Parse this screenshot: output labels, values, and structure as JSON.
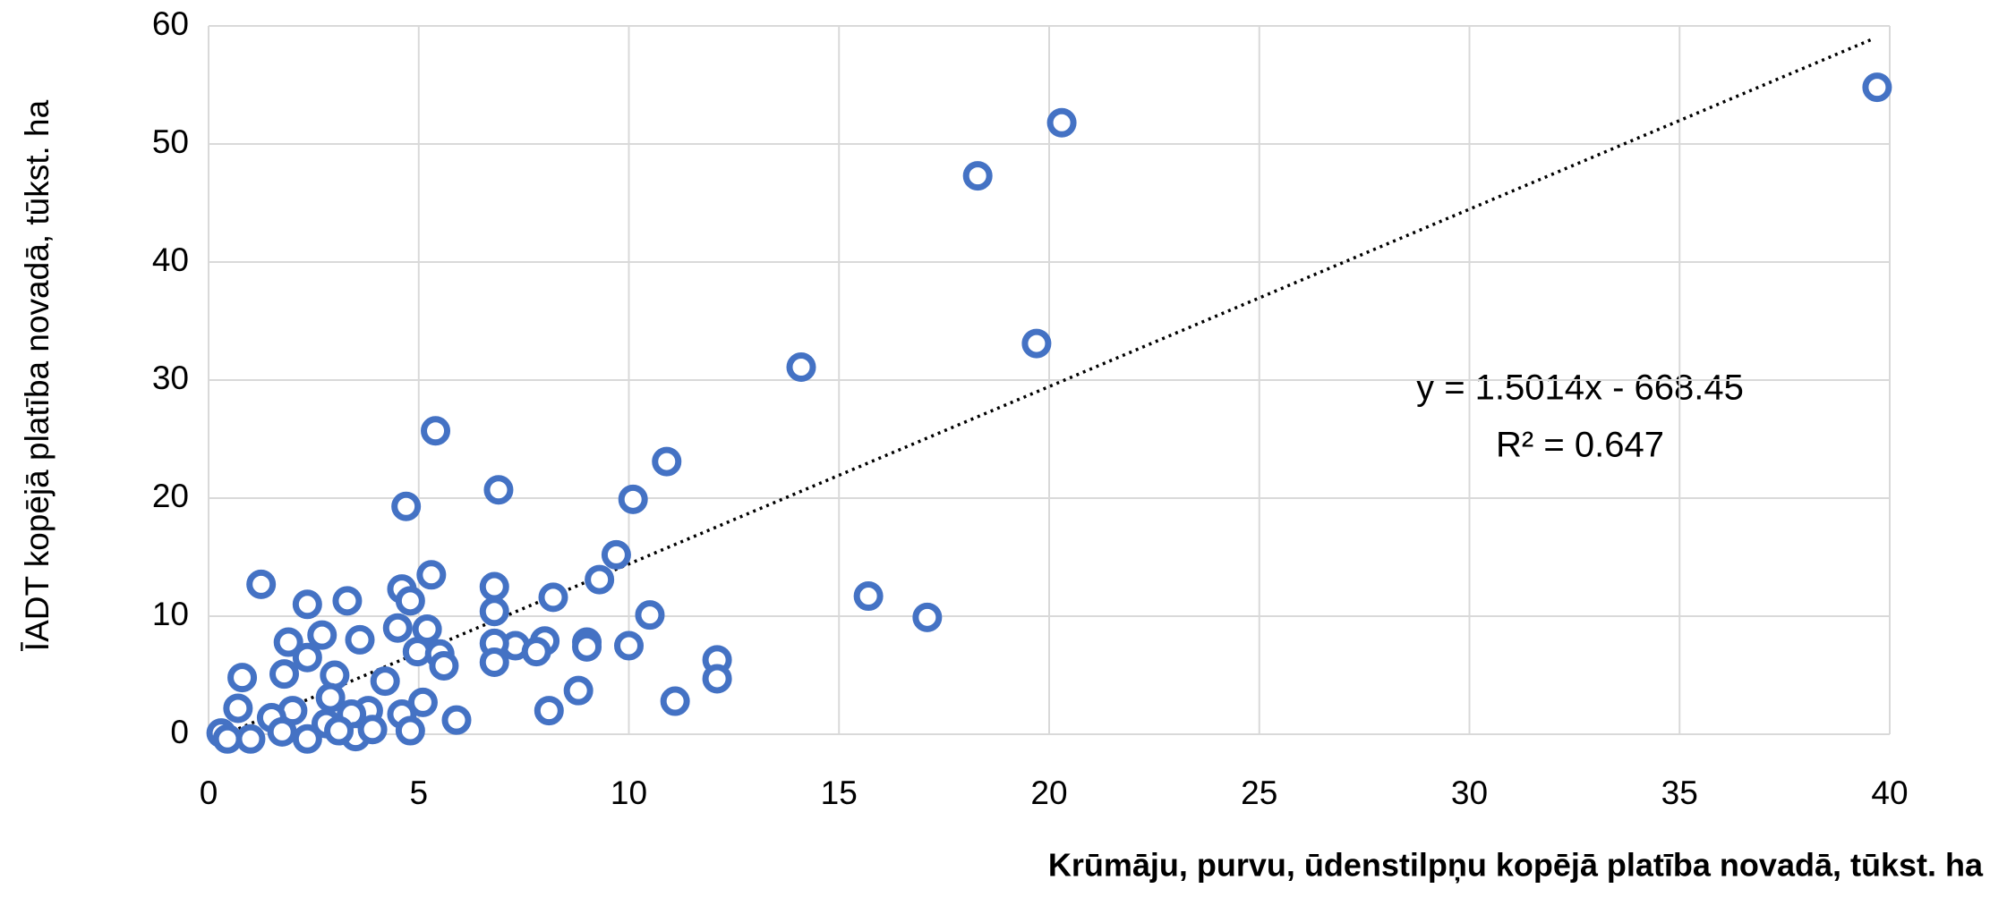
{
  "chart_data": {
    "type": "scatter",
    "xlabel": "Krūmāju, purvu, ūdenstilpņu kopējā platība novadā, tūkst. ha",
    "ylabel": "ĪADT kopējā platība novadā, tūkst. ha",
    "annotations": [
      "y = 1.5014x - 668.45",
      "R² = 0.647"
    ],
    "color": "#4472c4",
    "grid": true,
    "xlim": [
      0,
      40
    ],
    "xticks": [
      0,
      5,
      10,
      15,
      20,
      25,
      30,
      35,
      40
    ],
    "ylim": [
      0,
      60
    ],
    "yticks": [
      0,
      10,
      20,
      30,
      40,
      50,
      60
    ],
    "trendline": {
      "x": [
        0.4,
        39.6
      ],
      "y": [
        0,
        58.9
      ]
    },
    "x": [
      39.7,
      20.3,
      18.3,
      19.7,
      14.1,
      5.4,
      10.9,
      6.9,
      10.1,
      4.7,
      9.7,
      9.3,
      5.3,
      1.25,
      4.6,
      6.8,
      8.2,
      15.7,
      3.3,
      2.35,
      4.8,
      6.8,
      10.5,
      17.1,
      2.7,
      3.6,
      4.5,
      5.2,
      1.9,
      9.0,
      8.0,
      7.3,
      7.8,
      6.8,
      9.0,
      10.0,
      4.97,
      5.5,
      5.6,
      6.8,
      12.1,
      2.35,
      12.1,
      3.0,
      1.8,
      0.8,
      4.2,
      8.8,
      11.1,
      2.9,
      5.1,
      0.7,
      8.1,
      5.9,
      4.6,
      3.8,
      3.4,
      2.0,
      1.5,
      2.8,
      4.8,
      0.3,
      0.45,
      1.0,
      2.35,
      3.5,
      3.1,
      3.9,
      1.75
    ],
    "values": [
      54.8,
      51.8,
      47.3,
      33.1,
      31.1,
      25.7,
      23.1,
      20.7,
      19.9,
      19.3,
      15.2,
      13.1,
      13.5,
      12.7,
      12.3,
      12.5,
      11.6,
      11.7,
      11.3,
      11.0,
      11.3,
      10.4,
      10.1,
      9.9,
      8.4,
      8.0,
      9.0,
      8.9,
      7.8,
      7.8,
      7.9,
      7.5,
      7.0,
      7.7,
      7.4,
      7.5,
      7.0,
      6.8,
      5.8,
      6.1,
      6.3,
      6.5,
      4.7,
      5.0,
      5.1,
      4.8,
      4.5,
      3.7,
      2.8,
      3.1,
      2.7,
      2.2,
      2.0,
      1.2,
      1.7,
      2.0,
      1.7,
      2.0,
      1.4,
      0.9,
      0.3,
      0.1,
      -0.4,
      -0.4,
      -0.4,
      -0.2,
      0.3,
      0.4,
      0.2
    ]
  }
}
